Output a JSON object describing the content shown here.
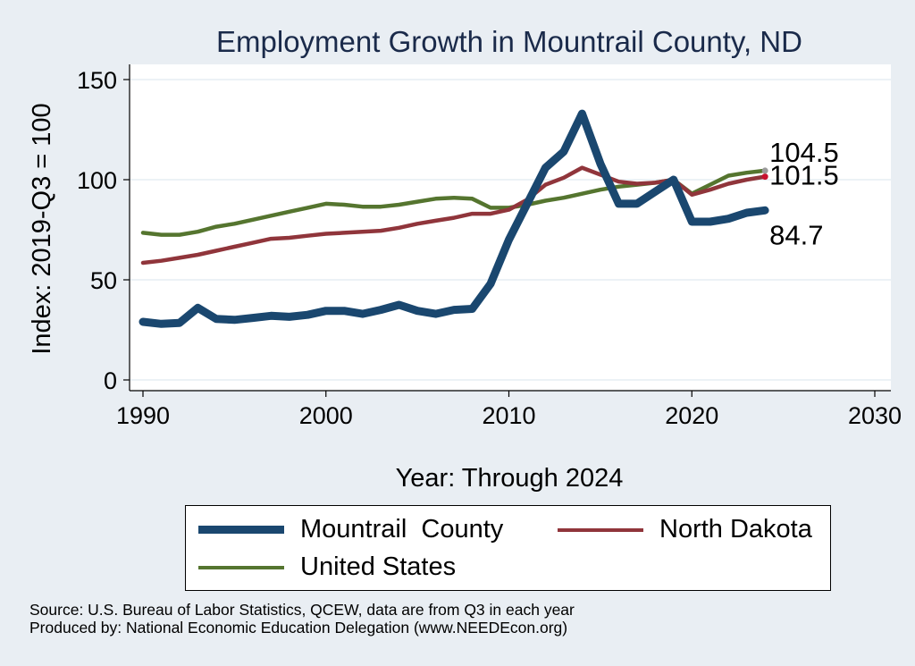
{
  "chart_data": {
    "type": "line",
    "title": "Employment Growth in Mountrail County, ND",
    "xlabel": "Year: Through 2024",
    "ylabel": "Index: 2019-Q3 = 100",
    "xlim": [
      1990,
      2030
    ],
    "ylim": [
      0,
      155
    ],
    "xticks": [
      "1990",
      "2000",
      "2010",
      "2020",
      "2030"
    ],
    "yticks": [
      "0",
      "50",
      "100",
      "150"
    ],
    "grid": true,
    "legend_position": "bottom",
    "x": [
      1990,
      1991,
      1992,
      1993,
      1994,
      1995,
      1996,
      1997,
      1998,
      1999,
      2000,
      2001,
      2002,
      2003,
      2004,
      2005,
      2006,
      2007,
      2008,
      2009,
      2010,
      2011,
      2012,
      2013,
      2014,
      2015,
      2016,
      2017,
      2018,
      2019,
      2020,
      2021,
      2022,
      2023,
      2024
    ],
    "series": [
      {
        "name": "Mountrail  County",
        "color": "#1a476f",
        "values": [
          29,
          28,
          28.5,
          36,
          30.5,
          30,
          31,
          32,
          31.5,
          32.5,
          34.5,
          34.5,
          33,
          35,
          37.5,
          34.5,
          33,
          35,
          35.5,
          48,
          70,
          88,
          106,
          114,
          133,
          108,
          88,
          88,
          94,
          100,
          79,
          79,
          80.5,
          83.5,
          84.7
        ],
        "end_label": "84.7"
      },
      {
        "name": "North Dakota",
        "color": "#90353b",
        "values": [
          58.5,
          59.5,
          61,
          62.5,
          64.5,
          66.5,
          68.5,
          70.5,
          71,
          72,
          73,
          73.5,
          74,
          74.5,
          76,
          78,
          79.5,
          81,
          83,
          83,
          85,
          90,
          97.5,
          101,
          106,
          102.5,
          99,
          98,
          98.5,
          100,
          92.5,
          95,
          98,
          100,
          101.5
        ],
        "end_label": "101.5"
      },
      {
        "name": "United States",
        "color": "#55752f",
        "values": [
          73.5,
          72.5,
          72.5,
          74,
          76.5,
          78,
          80,
          82,
          84,
          86,
          88,
          87.5,
          86.5,
          86.5,
          87.5,
          89,
          90.5,
          91,
          90.5,
          86,
          86,
          87.5,
          89.5,
          91,
          93,
          95,
          96.5,
          97.5,
          98.5,
          100,
          93,
          97.5,
          102,
          103.5,
          104.5
        ],
        "end_label": "104.5"
      }
    ]
  },
  "notes": {
    "source": "Source: U.S. Bureau of Labor Statistics, QCEW, data are from Q3 in each year",
    "produced": "Produced by: National Economic Education Delegation (www.NEEDEcon.org)"
  }
}
